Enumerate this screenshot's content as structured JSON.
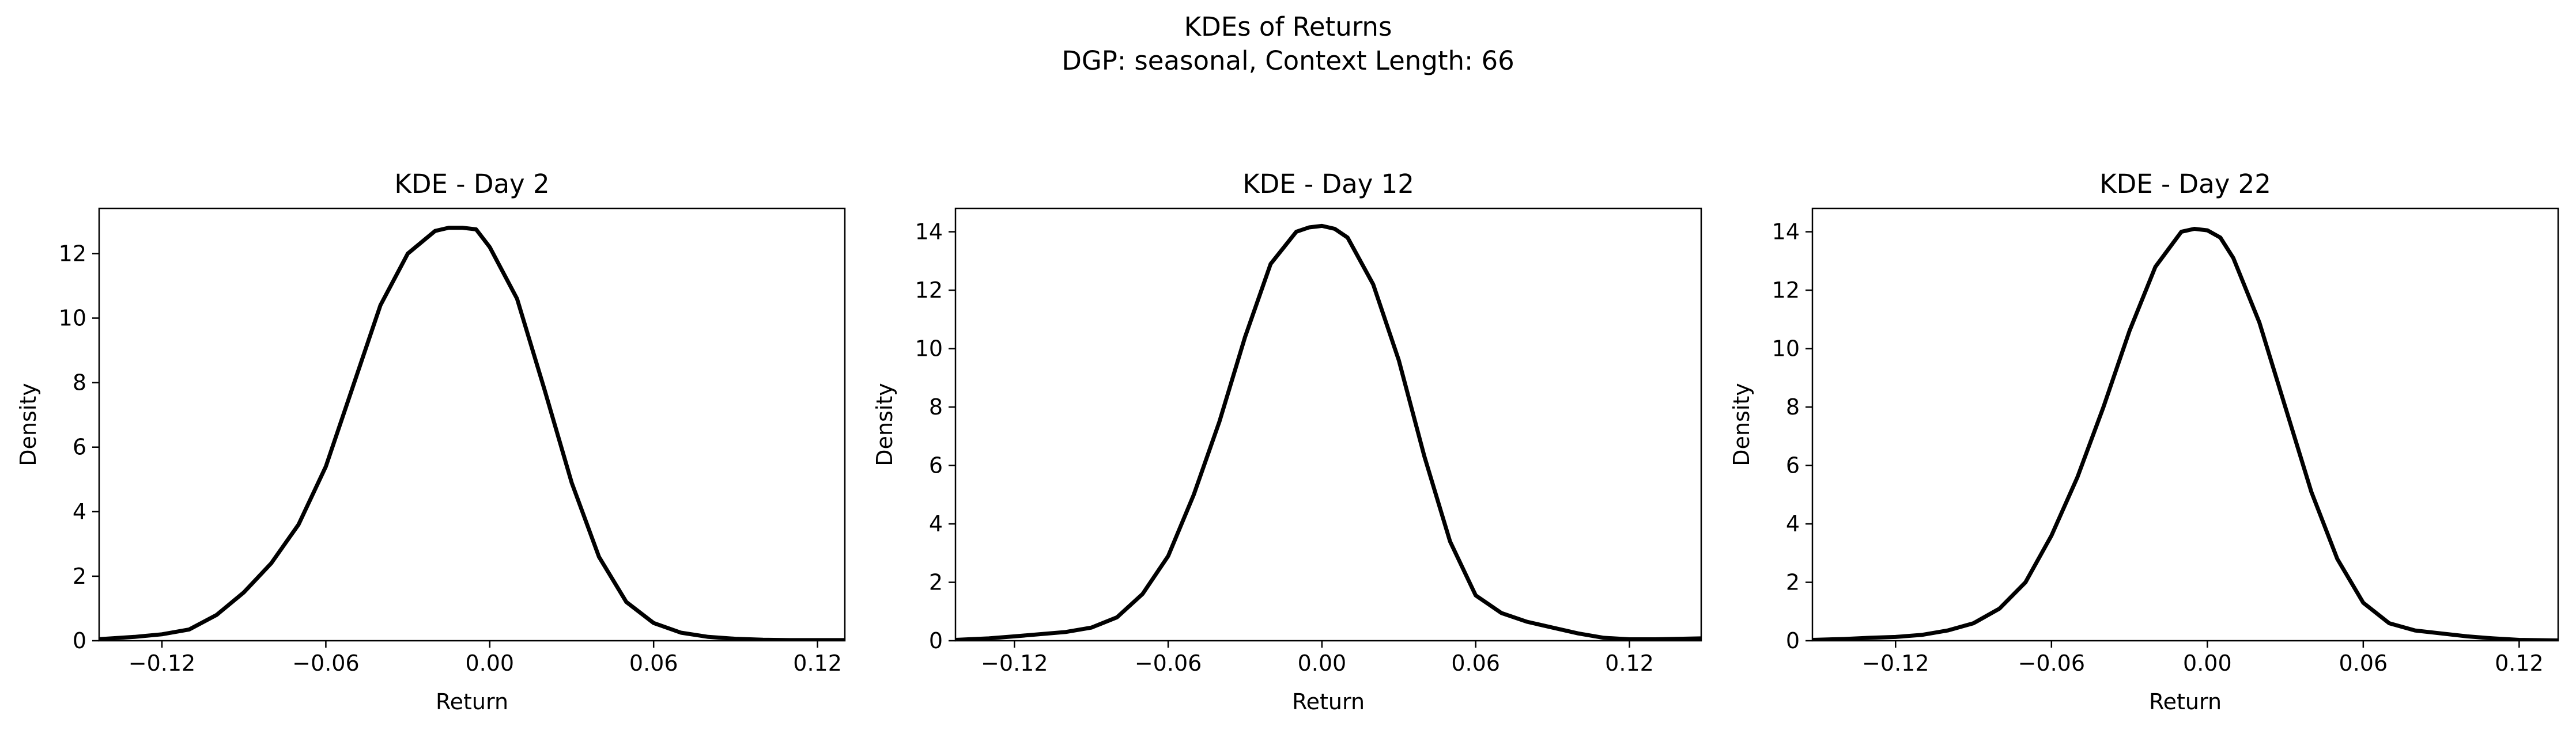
{
  "figure": {
    "suptitle_line1": "KDEs of Returns",
    "suptitle_line2": "DGP: seasonal, Context Length: 66"
  },
  "chart_data": [
    {
      "type": "line",
      "title": "KDE - Day 2",
      "xlabel": "Return",
      "ylabel": "Density",
      "xlim": [
        -0.143,
        0.13
      ],
      "ylim": [
        0,
        13.4
      ],
      "xticks": [
        -0.12,
        -0.06,
        0.0,
        0.06,
        0.12
      ],
      "xtick_labels": [
        "−0.12",
        "−0.06",
        "0.00",
        "0.06",
        "0.12"
      ],
      "yticks": [
        0,
        2,
        4,
        6,
        8,
        10,
        12
      ],
      "ytick_labels": [
        "0",
        "2",
        "4",
        "6",
        "8",
        "10",
        "12"
      ],
      "grid": false,
      "series": [
        {
          "color": "#000000",
          "x": [
            -0.143,
            -0.13,
            -0.12,
            -0.11,
            -0.1,
            -0.09,
            -0.08,
            -0.07,
            -0.06,
            -0.05,
            -0.04,
            -0.03,
            -0.02,
            -0.015,
            -0.01,
            -0.005,
            0.0,
            0.01,
            0.02,
            0.03,
            0.04,
            0.05,
            0.06,
            0.07,
            0.08,
            0.09,
            0.1,
            0.11,
            0.12,
            0.13
          ],
          "y": [
            0.05,
            0.12,
            0.2,
            0.35,
            0.8,
            1.5,
            2.4,
            3.6,
            5.4,
            7.9,
            10.4,
            12.0,
            12.7,
            12.8,
            12.8,
            12.75,
            12.2,
            10.6,
            7.8,
            4.9,
            2.6,
            1.2,
            0.55,
            0.25,
            0.12,
            0.06,
            0.03,
            0.02,
            0.02,
            0.02
          ]
        }
      ]
    },
    {
      "type": "line",
      "title": "KDE - Day 12",
      "xlabel": "Return",
      "ylabel": "Density",
      "xlim": [
        -0.143,
        0.148
      ],
      "ylim": [
        0,
        14.8
      ],
      "xticks": [
        -0.12,
        -0.06,
        0.0,
        0.06,
        0.12
      ],
      "xtick_labels": [
        "−0.12",
        "−0.06",
        "0.00",
        "0.06",
        "0.12"
      ],
      "yticks": [
        0,
        2,
        4,
        6,
        8,
        10,
        12,
        14
      ],
      "ytick_labels": [
        "0",
        "2",
        "4",
        "6",
        "8",
        "10",
        "12",
        "14"
      ],
      "grid": false,
      "series": [
        {
          "color": "#000000",
          "x": [
            -0.143,
            -0.13,
            -0.12,
            -0.1,
            -0.09,
            -0.08,
            -0.07,
            -0.06,
            -0.05,
            -0.04,
            -0.03,
            -0.02,
            -0.01,
            -0.005,
            0.0,
            0.005,
            0.01,
            0.02,
            0.03,
            0.04,
            0.05,
            0.06,
            0.07,
            0.08,
            0.09,
            0.1,
            0.11,
            0.12,
            0.13,
            0.148
          ],
          "y": [
            0.03,
            0.08,
            0.15,
            0.3,
            0.45,
            0.8,
            1.6,
            2.9,
            5.0,
            7.5,
            10.4,
            12.9,
            14.0,
            14.15,
            14.2,
            14.1,
            13.8,
            12.2,
            9.6,
            6.3,
            3.4,
            1.55,
            0.95,
            0.65,
            0.45,
            0.25,
            0.1,
            0.05,
            0.05,
            0.08
          ]
        }
      ]
    },
    {
      "type": "line",
      "title": "KDE - Day 22",
      "xlabel": "Return",
      "ylabel": "Density",
      "xlim": [
        -0.152,
        0.135
      ],
      "ylim": [
        0,
        14.8
      ],
      "xticks": [
        -0.12,
        -0.06,
        0.0,
        0.06,
        0.12
      ],
      "xtick_labels": [
        "−0.12",
        "−0.06",
        "0.00",
        "0.06",
        "0.12"
      ],
      "yticks": [
        0,
        2,
        4,
        6,
        8,
        10,
        12,
        14
      ],
      "ytick_labels": [
        "0",
        "2",
        "4",
        "6",
        "8",
        "10",
        "12",
        "14"
      ],
      "grid": false,
      "series": [
        {
          "color": "#000000",
          "x": [
            -0.152,
            -0.14,
            -0.13,
            -0.12,
            -0.11,
            -0.1,
            -0.09,
            -0.08,
            -0.07,
            -0.06,
            -0.05,
            -0.04,
            -0.03,
            -0.02,
            -0.01,
            -0.005,
            0.0,
            0.005,
            0.01,
            0.02,
            0.03,
            0.04,
            0.05,
            0.06,
            0.07,
            0.08,
            0.09,
            0.1,
            0.11,
            0.12,
            0.135
          ],
          "y": [
            0.03,
            0.06,
            0.1,
            0.13,
            0.2,
            0.35,
            0.6,
            1.1,
            2.0,
            3.6,
            5.6,
            8.0,
            10.6,
            12.8,
            14.0,
            14.1,
            14.05,
            13.8,
            13.1,
            10.9,
            8.0,
            5.1,
            2.8,
            1.3,
            0.6,
            0.35,
            0.25,
            0.15,
            0.08,
            0.03,
            0.01
          ]
        }
      ]
    }
  ]
}
